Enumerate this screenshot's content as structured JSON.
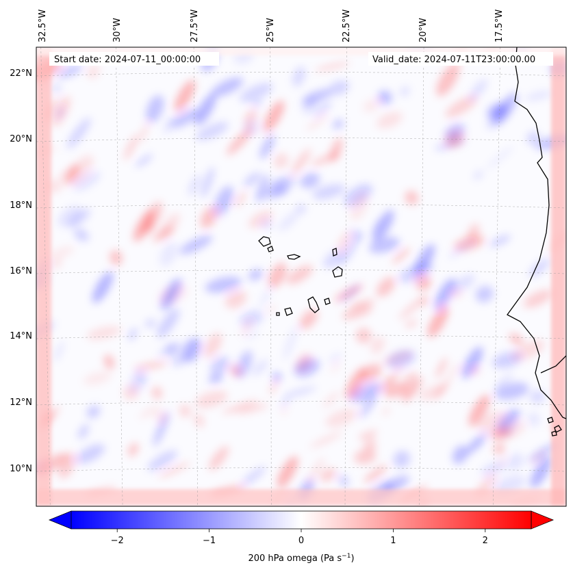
{
  "annotations": {
    "start_date": "Start date: 2024-07-11_00:00:00",
    "valid_date": "Valid_date: 2024-07-11T23:00:00.00"
  },
  "map": {
    "region": "Eastern tropical Atlantic, Cape Verde Islands, West African coast",
    "gridlines": true,
    "lon_labels": [
      "32.5°W",
      "30°W",
      "27.5°W",
      "25°W",
      "22.5°W",
      "20°W",
      "17.5°W"
    ],
    "lat_labels": [
      "22°N",
      "20°N",
      "18°N",
      "16°N",
      "14°N",
      "12°N",
      "10°N"
    ],
    "field_colors": {
      "negative": "#0000ff",
      "zero": "#ffffff",
      "positive": "#ff0000"
    }
  },
  "colorbar": {
    "ticks": [
      "−2",
      "−1",
      "0",
      "1",
      "2"
    ],
    "tick_values": [
      -2,
      -1,
      0,
      1,
      2
    ],
    "range": [
      -2.5,
      2.5
    ],
    "label": "200 hPa omega (Pa s",
    "label_sup": "−1",
    "label_close": ")",
    "colormap": "bwr"
  }
}
